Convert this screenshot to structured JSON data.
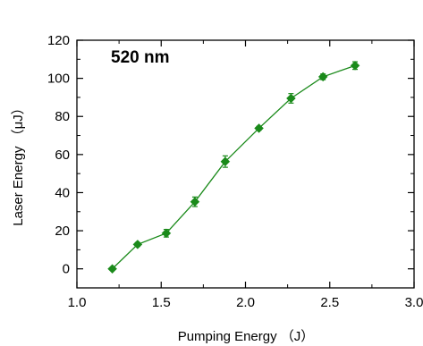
{
  "chart_data": {
    "type": "line",
    "title": "",
    "annotation": "520 nm",
    "xlabel": "Pumping Energy （J）",
    "ylabel": "Laser Energy （μJ）",
    "xlim": [
      1.0,
      3.0
    ],
    "ylim": [
      -10,
      120
    ],
    "xticks": [
      1.0,
      1.5,
      2.0,
      2.5,
      3.0
    ],
    "xtick_labels": [
      "1.0",
      "1.5",
      "2.0",
      "2.5",
      "3.0"
    ],
    "yticks": [
      0,
      20,
      40,
      60,
      80,
      100,
      120
    ],
    "ytick_labels": [
      "0",
      "20",
      "40",
      "60",
      "80",
      "100",
      "120"
    ],
    "grid": false,
    "marker": "diamond",
    "error_bars": true,
    "series": [
      {
        "color": "#1a8a1a",
        "x": [
          1.21,
          1.36,
          1.53,
          1.7,
          1.88,
          2.08,
          2.27,
          2.46,
          2.65
        ],
        "y": [
          0.0,
          12.8,
          18.7,
          35.2,
          56.3,
          73.8,
          89.5,
          100.8,
          106.7
        ],
        "yerr": [
          0.5,
          1.0,
          2.0,
          2.5,
          3.0,
          1.0,
          2.5,
          1.5,
          2.0
        ]
      }
    ]
  }
}
